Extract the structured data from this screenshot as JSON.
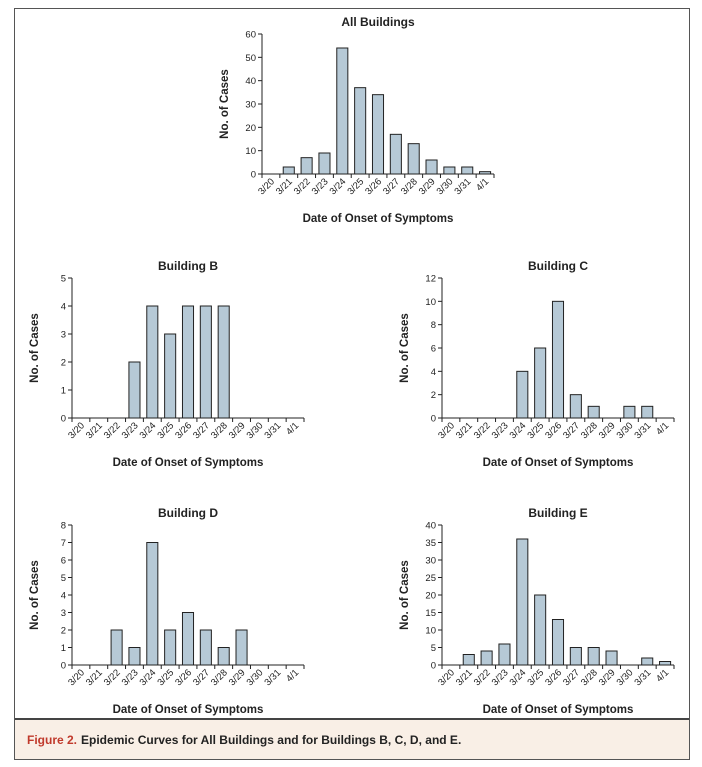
{
  "figure": {
    "caption_label": "Figure 2.",
    "caption_text": "Epidemic Curves for All Buildings and for Buildings B, C, D, and E.",
    "bar_color": "#b6c9d6",
    "bar_stroke": "#222222",
    "caption_label_color": "#c0392b",
    "caption_bg": "#f9efe6"
  },
  "chart_data": [
    {
      "id": "all",
      "type": "bar",
      "title": "All Buildings",
      "xlabel": "Date of Onset of Symptoms",
      "ylabel": "No. of Cases",
      "categories": [
        "3/20",
        "3/21",
        "3/22",
        "3/23",
        "3/24",
        "3/25",
        "3/26",
        "3/27",
        "3/28",
        "3/29",
        "3/30",
        "3/31",
        "4/1"
      ],
      "values": [
        0,
        3,
        7,
        9,
        54,
        37,
        34,
        17,
        13,
        6,
        3,
        3,
        1
      ],
      "ylim": [
        0,
        60
      ],
      "yticks": [
        0,
        10,
        20,
        30,
        40,
        50,
        60
      ],
      "grid": false
    },
    {
      "id": "b",
      "type": "bar",
      "title": "Building B",
      "xlabel": "Date of Onset of Symptoms",
      "ylabel": "No. of Cases",
      "categories": [
        "3/20",
        "3/21",
        "3/22",
        "3/23",
        "3/24",
        "3/25",
        "3/26",
        "3/27",
        "3/28",
        "3/29",
        "3/30",
        "3/31",
        "4/1"
      ],
      "values": [
        0,
        0,
        0,
        2,
        4,
        3,
        4,
        4,
        4,
        0,
        0,
        0,
        0
      ],
      "ylim": [
        0,
        5
      ],
      "yticks": [
        0,
        1,
        2,
        3,
        4,
        5
      ],
      "grid": false
    },
    {
      "id": "c",
      "type": "bar",
      "title": "Building C",
      "xlabel": "Date of Onset of Symptoms",
      "ylabel": "No. of Cases",
      "categories": [
        "3/20",
        "3/21",
        "3/22",
        "3/23",
        "3/24",
        "3/25",
        "3/26",
        "3/27",
        "3/28",
        "3/29",
        "3/30",
        "3/31",
        "4/1"
      ],
      "values": [
        0,
        0,
        0,
        0,
        4,
        6,
        10,
        2,
        1,
        0,
        1,
        1,
        0
      ],
      "ylim": [
        0,
        12
      ],
      "yticks": [
        0,
        2,
        4,
        6,
        8,
        10,
        12
      ],
      "grid": false
    },
    {
      "id": "d",
      "type": "bar",
      "title": "Building D",
      "xlabel": "Date of Onset of Symptoms",
      "ylabel": "No. of Cases",
      "categories": [
        "3/20",
        "3/21",
        "3/22",
        "3/23",
        "3/24",
        "3/25",
        "3/26",
        "3/27",
        "3/28",
        "3/29",
        "3/30",
        "3/31",
        "4/1"
      ],
      "values": [
        0,
        0,
        2,
        1,
        7,
        2,
        3,
        2,
        1,
        2,
        0,
        0,
        0
      ],
      "ylim": [
        0,
        8
      ],
      "yticks": [
        0,
        1,
        2,
        3,
        4,
        5,
        6,
        7,
        8
      ],
      "grid": false
    },
    {
      "id": "e",
      "type": "bar",
      "title": "Building E",
      "xlabel": "Date of Onset of Symptoms",
      "ylabel": "No. of Cases",
      "categories": [
        "3/20",
        "3/21",
        "3/22",
        "3/23",
        "3/24",
        "3/25",
        "3/26",
        "3/27",
        "3/28",
        "3/29",
        "3/30",
        "3/31",
        "4/1"
      ],
      "values": [
        0,
        3,
        4,
        6,
        36,
        20,
        13,
        5,
        5,
        4,
        0,
        2,
        1
      ],
      "ylim": [
        0,
        40
      ],
      "yticks": [
        0,
        5,
        10,
        15,
        20,
        25,
        30,
        35,
        40
      ],
      "grid": false
    }
  ]
}
